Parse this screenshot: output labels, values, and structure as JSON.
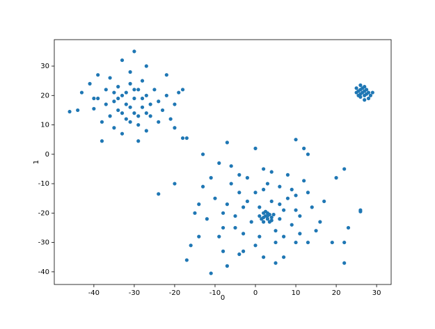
{
  "chart_data": {
    "type": "scatter",
    "xlabel": "0",
    "ylabel": "1",
    "color": "#1f77b4",
    "xlim": [
      -49.8,
      33.6
    ],
    "ylim": [
      -44.3,
      39
    ],
    "xticks": [
      -40,
      -30,
      -20,
      -10,
      0,
      10,
      20,
      30
    ],
    "yticks": [
      -40,
      -30,
      -20,
      -10,
      0,
      10,
      20,
      30
    ],
    "x": [
      -46,
      -44,
      -43,
      -41,
      -40,
      -40,
      -39,
      -39,
      -38,
      -38,
      -37,
      -37,
      -36,
      -36,
      -35,
      -35,
      -34,
      -34,
      -33,
      -33,
      -33,
      -32,
      -32,
      -31,
      -31,
      -30,
      -30,
      -30,
      -29,
      -29,
      -29,
      -28,
      -28,
      -27,
      -27,
      -27,
      -26,
      -26,
      -25,
      -24,
      -24,
      -23,
      -22,
      -22,
      -21,
      -20,
      -20,
      -19,
      -18,
      -18,
      -34,
      -32,
      -31,
      -30,
      -33,
      -28,
      -29,
      -35,
      -27,
      -31,
      25,
      25.5,
      26,
      26,
      26.5,
      27,
      27,
      27.5,
      28,
      28,
      25,
      26,
      27,
      28.5,
      29,
      25.5,
      26.5,
      27.5,
      26,
      27,
      2,
      2.5,
      3,
      3.5,
      4,
      1.5,
      3,
      2,
      4,
      3,
      2.5,
      3.5,
      1,
      4.5,
      2,
      -10,
      -8,
      -6,
      -5,
      -3,
      -2,
      0,
      1,
      2,
      4,
      5,
      6,
      7,
      8,
      9,
      10,
      11,
      12,
      14,
      15,
      -12,
      -11,
      -9,
      -7,
      -4,
      -1,
      1,
      3,
      5,
      6,
      8,
      -14,
      -13,
      -6,
      -3,
      0,
      4,
      7,
      9,
      11,
      -15,
      -9,
      -5,
      -2,
      2,
      6,
      10,
      13,
      -8,
      -4,
      -11,
      -7,
      22,
      5,
      -17,
      26,
      26,
      23,
      22,
      20,
      19,
      22,
      12,
      13,
      10,
      0,
      -7,
      -17,
      -13,
      -24,
      -20,
      -16,
      -14,
      -8,
      -4,
      -3,
      2,
      7,
      10,
      13,
      16,
      17
    ],
    "values": [
      14.5,
      15,
      21,
      24,
      19,
      15.5,
      27,
      19,
      4.5,
      11,
      17,
      22,
      26,
      13,
      9,
      18,
      23,
      15,
      32,
      7,
      20,
      12,
      17,
      24,
      28,
      35,
      14,
      19,
      4.5,
      22,
      10,
      16,
      25,
      20,
      30,
      8,
      17,
      13,
      22,
      11,
      18,
      15,
      27,
      20,
      12,
      9,
      17,
      21,
      22,
      5.5,
      19,
      21,
      16,
      22,
      14,
      19,
      13,
      21,
      14,
      11,
      21,
      20,
      22,
      19.5,
      21,
      23,
      20,
      22,
      21,
      19,
      22.5,
      23.5,
      18.5,
      20,
      21,
      21.5,
      22.5,
      20.5,
      20.5,
      21.5,
      -20,
      -21,
      -22,
      -20.5,
      -21.5,
      -22,
      -20,
      -23,
      -22.5,
      -21,
      -19.5,
      -23,
      -21,
      -20.5,
      -21.5,
      -15,
      -20,
      -10,
      -25,
      -18,
      -8,
      -13,
      -28,
      -5,
      -16,
      -26,
      -11,
      -19,
      -7,
      -24,
      -14,
      -21,
      -9,
      -18,
      -26,
      -22,
      -8,
      -28,
      -17,
      -13,
      -23,
      -18,
      -10,
      -30,
      -22,
      -15,
      -17,
      -11,
      -4,
      -27,
      -31,
      -6,
      -28,
      -12,
      -27,
      -20,
      -3,
      -21,
      -16,
      -12,
      -17,
      -19,
      -13,
      -25,
      -7,
      -40.5,
      -38,
      -37,
      -37,
      -36,
      -19.5,
      -19,
      -25,
      -5,
      -8,
      -30,
      -30,
      2,
      0,
      5,
      2,
      4,
      5.5,
      0,
      -13.5,
      -10,
      -31,
      -28,
      -33,
      -34,
      -33,
      -35,
      -35,
      -30,
      -30,
      -23,
      -16
    ]
  }
}
